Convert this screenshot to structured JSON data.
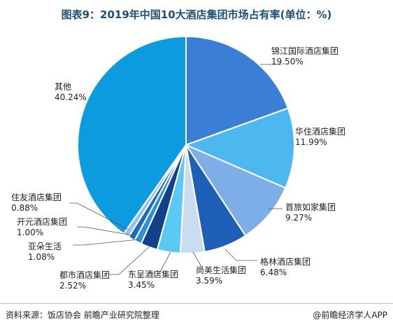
{
  "page": {
    "title": "图表9：2019年中国10大酒店集团市场占有率(单位：%)",
    "source": "资料来源：饭店协会 前瞻产业研究院整理",
    "brand": "@前瞻经济学人APP"
  },
  "chart_data": {
    "type": "pie",
    "title": "图表9：2019年中国10大酒店集团市场占有率(单位：%)",
    "unit": "%",
    "slices": [
      {
        "name": "锦江国际酒店集团",
        "value": 19.5,
        "label": "19.50%",
        "color": "#3a7fd5"
      },
      {
        "name": "华住酒店集团",
        "value": 11.99,
        "label": "11.99%",
        "color": "#4db8f0"
      },
      {
        "name": "首旅如家集团",
        "value": 9.27,
        "label": "9.27%",
        "color": "#7eaee8"
      },
      {
        "name": "格林酒店集团",
        "value": 6.48,
        "label": "6.48%",
        "color": "#1f5fb8"
      },
      {
        "name": "尚美生活集团",
        "value": 3.59,
        "label": "3.59%",
        "color": "#c9dcf0"
      },
      {
        "name": "东呈酒店集团",
        "value": 3.45,
        "label": "3.45%",
        "color": "#5ec8f5"
      },
      {
        "name": "都市酒店集团",
        "value": 2.52,
        "label": "2.52%",
        "color": "#12408a"
      },
      {
        "name": "亚朵生活",
        "value": 1.08,
        "label": "1.08%",
        "color": "#2e8fd9"
      },
      {
        "name": "开元酒店集团",
        "value": 1.0,
        "label": "1.00%",
        "color": "#1a6cc0"
      },
      {
        "name": "住友酒店集团",
        "value": 0.88,
        "label": "0.88%",
        "color": "#9cc3ec"
      },
      {
        "name": "其他",
        "value": 40.24,
        "label": "40.24%",
        "color": "#0d9be0"
      }
    ]
  }
}
